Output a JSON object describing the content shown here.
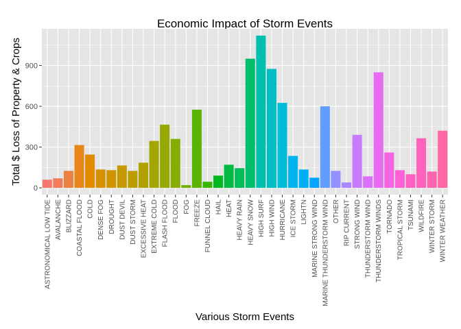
{
  "chart_data": {
    "type": "bar",
    "title": "Economic Impact of Storm Events",
    "xlabel": "Various Storm Events",
    "ylabel": "Total $ Loss of Property & Crops",
    "ylim": [
      -50,
      1170
    ],
    "yticks": [
      0,
      300,
      600,
      900
    ],
    "grid": true,
    "legend": "none",
    "categories": [
      "ASTRONOMICAL LOW TIDE",
      "AVALANCHE",
      "BLIZZARD",
      "COASTAL FLOOD",
      "COLD",
      "DENSE FOG",
      "DROUGHT",
      "DUST DEVIL",
      "DUST STORM",
      "EXCESSIVE HEAT",
      "EXTREME COLD",
      "FLASH FLOOD",
      "FLOOD",
      "FOG",
      "FREEZE",
      "FUNNEL CLOUD",
      "HAIL",
      "HEAT",
      "HEAVY RAIN",
      "HEAVY SNOW",
      "HIGH SURF",
      "HIGH WIND",
      "HURRICANE",
      "ICE STORM",
      "LIGHTN",
      "MARINE STRONG WIND",
      "MARINE THUNDERSTORM WIND",
      "OTHER",
      "RIP CURRENT",
      "STRONG WIND",
      "THUNDERSTORM WIND",
      "THUNDERSTORM WINDS",
      "TORNADO",
      "TROPICAL STORM",
      "TSUNAMI",
      "WILDFIRE",
      "WINTER STORM",
      "WINTER WEATHER"
    ],
    "values": [
      60,
      70,
      125,
      315,
      245,
      135,
      130,
      165,
      125,
      185,
      345,
      465,
      360,
      20,
      575,
      45,
      90,
      170,
      145,
      950,
      1120,
      875,
      625,
      235,
      135,
      75,
      600,
      125,
      40,
      390,
      85,
      850,
      260,
      130,
      100,
      365,
      120,
      420
    ],
    "colors": [
      "#F8766D",
      "#F37B59",
      "#ED8141",
      "#E7861B",
      "#E08B00",
      "#D89000",
      "#CF9400",
      "#C59900",
      "#BB9D00",
      "#AFA100",
      "#A3A500",
      "#95A900",
      "#85AD00",
      "#72B000",
      "#5BB300",
      "#39B600",
      "#00B81F",
      "#00BA42",
      "#00BC59",
      "#00BE6C",
      "#00C0AF",
      "#00BFC4",
      "#00BCD8",
      "#00B4EF",
      "#00B0F6",
      "#00A5FF",
      "#619CFF",
      "#9590FF",
      "#AC88FF",
      "#C77CFF",
      "#DB72FB",
      "#E76BF3",
      "#F564E3",
      "#FC61D5",
      "#FF61C3",
      "#FF62BC",
      "#FF64B0",
      "#FF67A4"
    ],
    "panel_color": "#E5E5E5",
    "grid_color": "#FFFFFF"
  }
}
